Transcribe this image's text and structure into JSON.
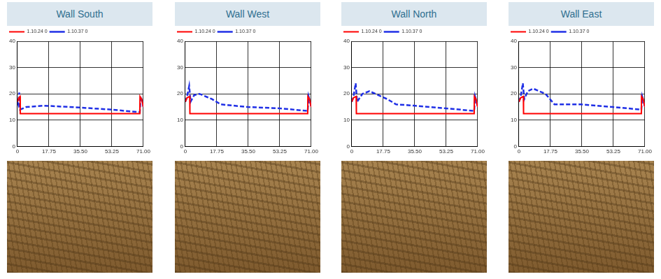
{
  "chart_data": [
    {
      "type": "line",
      "title": "Wall South",
      "xlim": [
        0,
        71
      ],
      "ylim": [
        0,
        40
      ],
      "xticks": [
        0,
        17.75,
        {
          "value": 35.5,
          "label": "35.50"
        },
        53.25,
        {
          "value": 71,
          "label": "71.00"
        }
      ],
      "yticks": [
        0,
        10,
        20,
        30,
        40
      ],
      "grid": true,
      "legend": "upper left",
      "series": [
        {
          "name": "1.10.24 0",
          "color": "#ff0000",
          "line_style": "solid",
          "x": [
            0,
            0.8,
            1.5,
            1.6,
            69,
            69.1,
            70,
            71
          ],
          "values": [
            17,
            18.5,
            19,
            12.5,
            12.5,
            19,
            18,
            15
          ]
        },
        {
          "name": "1.10.37 0",
          "color": "#1f2fe6",
          "line_style": "dashed",
          "x": [
            0,
            0.5,
            1,
            1.5,
            5,
            15,
            35,
            53,
            69,
            69.5,
            70.3,
            71
          ],
          "values": [
            17,
            16,
            20.5,
            14,
            15,
            15.5,
            14.8,
            14,
            13,
            19,
            17,
            15
          ]
        }
      ]
    },
    {
      "type": "line",
      "title": "Wall West",
      "xlim": [
        0,
        71
      ],
      "ylim": [
        0,
        40
      ],
      "xticks": [
        0,
        17.75,
        {
          "value": 35.5,
          "label": "35.50"
        },
        53.25,
        {
          "value": 71,
          "label": "71.00"
        }
      ],
      "yticks": [
        0,
        10,
        20,
        30,
        40
      ],
      "grid": true,
      "legend": "upper left",
      "series": [
        {
          "name": "1.10.24 0",
          "color": "#ff0000",
          "line_style": "solid",
          "x": [
            0,
            1,
            2.5,
            2.6,
            69,
            69.1,
            70,
            71
          ],
          "values": [
            17,
            18.5,
            19,
            12.5,
            12.5,
            19,
            18,
            15
          ]
        },
        {
          "name": "1.10.37 0",
          "color": "#1f2fe6",
          "line_style": "dashed",
          "x": [
            0,
            1,
            2.2,
            3,
            5,
            8,
            15,
            20,
            35,
            53,
            69,
            69.5,
            70.3,
            71
          ],
          "values": [
            17,
            19,
            23,
            17,
            19.5,
            20,
            18,
            16,
            15,
            14.5,
            13.5,
            19,
            17,
            15
          ]
        }
      ]
    },
    {
      "type": "line",
      "title": "Wall North",
      "xlim": [
        0,
        71
      ],
      "ylim": [
        0,
        40
      ],
      "xticks": [
        0,
        17.75,
        {
          "value": 35.5,
          "label": "35.50"
        },
        53.25,
        {
          "value": 71,
          "label": "71.00"
        }
      ],
      "yticks": [
        0,
        10,
        20,
        30,
        40
      ],
      "grid": true,
      "legend": "upper left",
      "series": [
        {
          "name": "1.10.24 0",
          "color": "#ff0000",
          "line_style": "solid",
          "x": [
            0,
            1,
            2.5,
            2.6,
            69,
            69.1,
            70,
            71
          ],
          "values": [
            17,
            18.5,
            19,
            12.5,
            12.5,
            19,
            18,
            15
          ]
        },
        {
          "name": "1.10.37 0",
          "color": "#1f2fe6",
          "line_style": "dashed",
          "x": [
            0,
            1,
            2.2,
            3,
            6,
            10,
            20,
            25,
            35,
            53,
            69,
            69.5,
            70.3,
            71
          ],
          "values": [
            17,
            19,
            24,
            17,
            20,
            21,
            18,
            16,
            15.5,
            14.5,
            13.5,
            19,
            17,
            15
          ]
        }
      ]
    },
    {
      "type": "line",
      "title": "Wall East",
      "xlim": [
        0,
        71
      ],
      "ylim": [
        0,
        40
      ],
      "xticks": [
        0,
        17.75,
        {
          "value": 35.5,
          "label": "35.50"
        },
        53.25,
        {
          "value": 71,
          "label": "71.00"
        }
      ],
      "yticks": [
        0,
        10,
        20,
        30,
        40
      ],
      "grid": true,
      "legend": "upper left",
      "series": [
        {
          "name": "1.10.24 0",
          "color": "#ff0000",
          "line_style": "solid",
          "x": [
            0,
            1,
            2.5,
            2.6,
            69,
            69.1,
            70,
            71
          ],
          "values": [
            17,
            18.5,
            19,
            12.5,
            12.5,
            19,
            18,
            15
          ]
        },
        {
          "name": "1.10.37 0",
          "color": "#1f2fe6",
          "line_style": "dashed",
          "x": [
            0,
            1,
            2.2,
            3,
            5,
            8,
            15,
            20,
            35,
            53,
            69,
            69.5,
            70.3,
            71
          ],
          "values": [
            17,
            19,
            24,
            18,
            21,
            22,
            20,
            16,
            16,
            15,
            14,
            19,
            17,
            15
          ]
        }
      ]
    }
  ]
}
